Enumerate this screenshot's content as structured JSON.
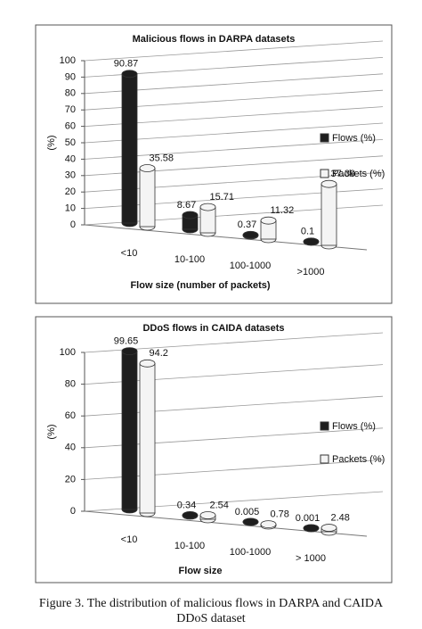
{
  "chart_data": [
    {
      "type": "bar3d",
      "title": "Malicious flows in DARPA datasets",
      "y_label": "(%)",
      "x_label": "Flow size (number of packets)",
      "categories": [
        "<10",
        "10-100",
        "100-1000",
        ">1000"
      ],
      "series": [
        {
          "name": "Flows (%)",
          "color": "#1e1e1e",
          "values": [
            90.87,
            8.67,
            0.37,
            0.1
          ]
        },
        {
          "name": "Packets (%)",
          "color": "#f4f4f4",
          "values": [
            35.58,
            15.71,
            11.32,
            37.39
          ]
        }
      ],
      "ylim": [
        0,
        100
      ],
      "yticks": [
        0,
        10,
        20,
        30,
        40,
        50,
        60,
        70,
        80,
        90,
        100
      ],
      "grid": true,
      "legend": "right"
    },
    {
      "type": "bar3d",
      "title": "DDoS flows in CAIDA datasets",
      "y_label": "(%)",
      "x_label": "Flow size",
      "categories": [
        "<10",
        "10-100",
        "100-1000",
        "> 1000"
      ],
      "series": [
        {
          "name": "Flows (%)",
          "color": "#1e1e1e",
          "values": [
            99.65,
            0.34,
            0.005,
            0.001
          ]
        },
        {
          "name": "Packets (%)",
          "color": "#f4f4f4",
          "values": [
            94.2,
            2.54,
            0.78,
            2.48
          ]
        }
      ],
      "ylim": [
        0,
        100
      ],
      "yticks": [
        0,
        20,
        40,
        60,
        80,
        100
      ],
      "grid": true,
      "legend": "right"
    }
  ],
  "caption": [
    "Figure 3.    The distribution of malicious flows in DARPA and CAIDA",
    "DDoS dataset"
  ]
}
